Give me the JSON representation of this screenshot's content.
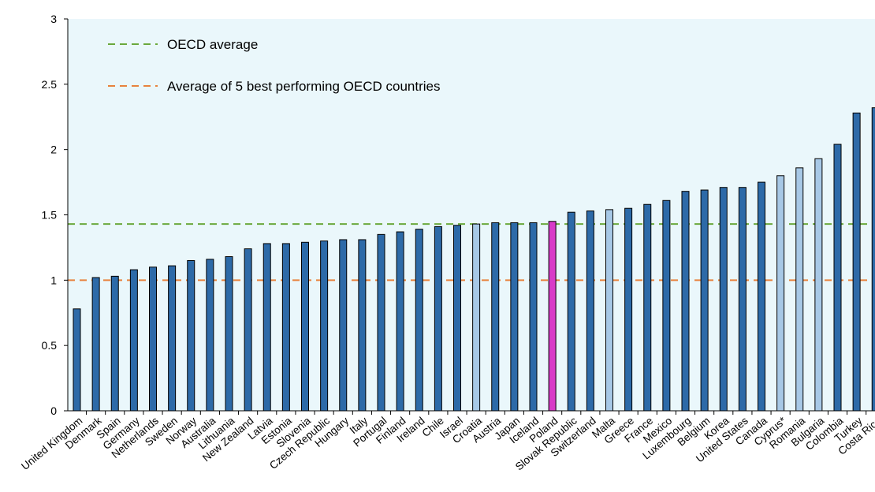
{
  "chart_data": {
    "type": "bar",
    "title": "",
    "xlabel": "",
    "ylabel": "",
    "ylim": [
      0,
      3
    ],
    "yticks": [
      "0",
      "0.5",
      "1",
      "1.5",
      "2",
      "2.5",
      "3"
    ],
    "grid": false,
    "legend_position": "top-left",
    "categories": [
      "United Kingdom",
      "Denmark",
      "Spain",
      "Germany",
      "Netherlands",
      "Sweden",
      "Norway",
      "Australia",
      "Lithuania",
      "New Zealand",
      "Latvia",
      "Estonia",
      "Slovenia",
      "Czech Republic",
      "Hungary",
      "Italy",
      "Portugal",
      "Finland",
      "Ireland",
      "Chile",
      "Israel",
      "Croatia",
      "Austria",
      "Japan",
      "Iceland",
      "Poland",
      "Slovak Republic",
      "Switzerland",
      "Malta",
      "Greece",
      "France",
      "Mexico",
      "Luxembourg",
      "Belgium",
      "Korea",
      "United States",
      "Canada",
      "Cyprus*",
      "Romania",
      "Bulgaria",
      "Colombia",
      "Turkey",
      "Costa Rica"
    ],
    "values": [
      0.78,
      1.02,
      1.03,
      1.08,
      1.1,
      1.11,
      1.15,
      1.16,
      1.18,
      1.24,
      1.28,
      1.28,
      1.29,
      1.3,
      1.31,
      1.31,
      1.35,
      1.37,
      1.39,
      1.41,
      1.42,
      1.43,
      1.44,
      1.44,
      1.44,
      1.45,
      1.52,
      1.53,
      1.54,
      1.55,
      1.58,
      1.61,
      1.68,
      1.69,
      1.71,
      1.71,
      1.75,
      1.8,
      1.86,
      1.93,
      2.04,
      2.28,
      2.32
    ],
    "bar_color_groups": [
      "oecd",
      "oecd",
      "oecd",
      "oecd",
      "oecd",
      "oecd",
      "oecd",
      "oecd",
      "oecd",
      "oecd",
      "oecd",
      "oecd",
      "oecd",
      "oecd",
      "oecd",
      "oecd",
      "oecd",
      "oecd",
      "oecd",
      "oecd",
      "oecd",
      "non-oecd",
      "oecd",
      "oecd",
      "oecd",
      "highlight",
      "oecd",
      "oecd",
      "non-oecd",
      "oecd",
      "oecd",
      "oecd",
      "oecd",
      "oecd",
      "oecd",
      "oecd",
      "oecd",
      "non-oecd",
      "non-oecd",
      "non-oecd",
      "oecd",
      "oecd",
      "oecd"
    ],
    "colors": {
      "oecd": "#2d6aa8",
      "non-oecd": "#a7c8e6",
      "highlight": "#d83bc8",
      "oecd_average_line": "#6aa83c",
      "best5_line": "#e8823e",
      "plot_background": "#eaf7fb"
    },
    "reference_lines": [
      {
        "name": "OECD average",
        "value": 1.43,
        "color": "#6aa83c"
      },
      {
        "name": "Average of 5 best performing OECD countries",
        "value": 1.0,
        "color": "#e8823e"
      }
    ]
  }
}
